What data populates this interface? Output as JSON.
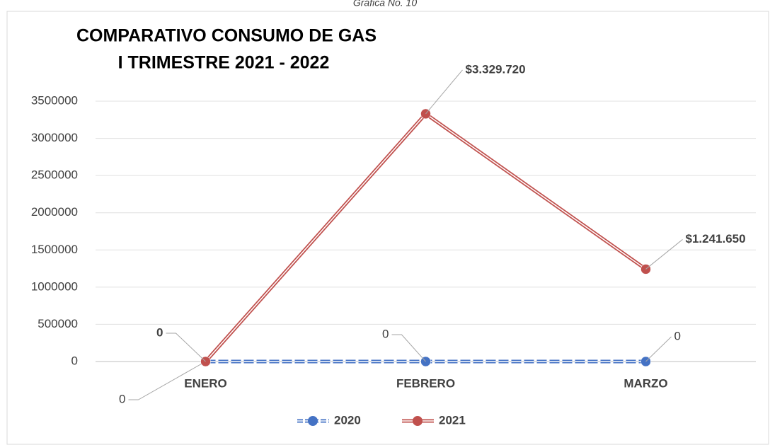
{
  "chart_data": {
    "type": "line",
    "caption": "Gráfica No. 10",
    "title": [
      "COMPARATIVO CONSUMO DE GAS",
      "I TRIMESTRE 2021 - 2022"
    ],
    "categories": [
      "ENERO",
      "FEBRERO",
      "MARZO"
    ],
    "series": [
      {
        "name": "2020",
        "color": "#4472c4",
        "dashed": true,
        "values": [
          0,
          0,
          0
        ],
        "value_labels": [
          "0",
          "0",
          "0"
        ]
      },
      {
        "name": "2021",
        "color": "#c0504d",
        "dashed": false,
        "values": [
          0,
          3329720,
          1241650
        ],
        "value_labels": [
          "0",
          "$3.329.720",
          "$1.241.650"
        ]
      }
    ],
    "ylim": [
      0,
      3500000
    ],
    "yticks": [
      0,
      500000,
      1000000,
      1500000,
      2000000,
      2500000,
      3000000,
      3500000
    ],
    "grid": true,
    "legend": "bottom"
  }
}
